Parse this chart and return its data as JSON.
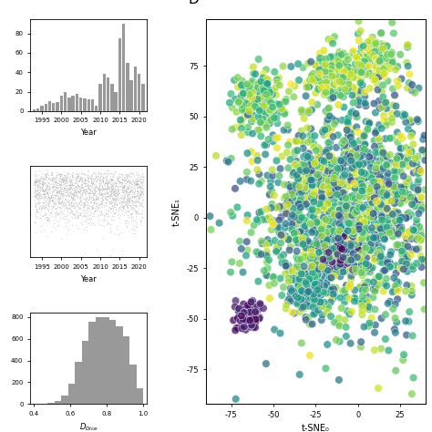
{
  "title_label": "D",
  "bar_color": "#999999",
  "bar_years": [
    1993,
    1994,
    1995,
    1996,
    1997,
    1998,
    1999,
    2000,
    2001,
    2002,
    2003,
    2004,
    2005,
    2006,
    2007,
    2008,
    2009,
    2010,
    2011,
    2012,
    2013,
    2014,
    2015,
    2016,
    2017,
    2018,
    2019,
    2020,
    2021
  ],
  "bar_values": [
    2,
    3,
    5,
    7,
    10,
    8,
    9,
    16,
    20,
    14,
    16,
    18,
    14,
    13,
    12,
    12,
    5,
    28,
    38,
    35,
    28,
    20,
    75,
    90,
    50,
    32,
    46,
    38,
    28
  ],
  "xlabel_bar": "Year",
  "tsne_xlabel": "t-SNE₀",
  "tsne_ylabel": "t-SNE₁",
  "tsne_xlim": [
    -90,
    40
  ],
  "tsne_ylim": [
    -92,
    98
  ],
  "tsne_xticks": [
    -75,
    -50,
    -25,
    0,
    25
  ],
  "tsne_yticks": [
    -75,
    -50,
    -25,
    0,
    25,
    50,
    75
  ],
  "year_xlim": [
    1992,
    2022
  ],
  "year_xticks": [
    1995,
    2000,
    2005,
    2010,
    2015,
    2020
  ],
  "scatter_ylim": [
    -0.05,
    1.05
  ],
  "dice_xlim": [
    0.38,
    1.02
  ],
  "dice_xticks": [
    0.4,
    0.6,
    0.8,
    1.0
  ]
}
